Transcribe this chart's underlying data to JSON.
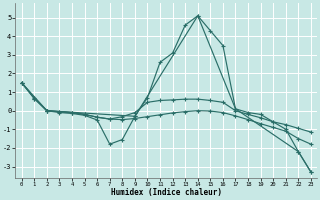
{
  "xlabel": "Humidex (Indice chaleur)",
  "background_color": "#c8e8e5",
  "grid_color": "#ffffff",
  "line_color": "#2a6e68",
  "xlim": [
    -0.5,
    23.5
  ],
  "ylim": [
    -3.6,
    5.8
  ],
  "xticks": [
    0,
    1,
    2,
    3,
    4,
    5,
    6,
    7,
    8,
    9,
    10,
    11,
    12,
    13,
    14,
    15,
    16,
    17,
    18,
    19,
    20,
    21,
    22,
    23
  ],
  "yticks": [
    -3,
    -2,
    -1,
    0,
    1,
    2,
    3,
    4,
    5
  ],
  "series": [
    {
      "x": [
        0,
        1,
        2,
        3,
        4,
        5,
        6,
        7,
        8,
        9,
        10,
        11,
        12,
        13,
        14,
        15,
        16,
        17,
        18,
        19,
        20,
        21,
        22,
        23
      ],
      "y": [
        1.5,
        0.7,
        0.0,
        -0.1,
        -0.15,
        -0.25,
        -0.5,
        -1.8,
        -1.55,
        -0.3,
        0.7,
        2.6,
        3.1,
        4.6,
        5.1,
        4.3,
        3.5,
        0.1,
        -0.1,
        -0.2,
        -0.6,
        -1.0,
        -2.2,
        -3.3
      ]
    },
    {
      "x": [
        0,
        1,
        2,
        3,
        4,
        5,
        6,
        7,
        8,
        9,
        10,
        11,
        12,
        13,
        14,
        15,
        16,
        17,
        18,
        19,
        20,
        21,
        22,
        23
      ],
      "y": [
        1.5,
        0.65,
        0.0,
        -0.05,
        -0.1,
        -0.2,
        -0.35,
        -0.45,
        -0.32,
        -0.1,
        0.45,
        0.55,
        0.58,
        0.62,
        0.62,
        0.55,
        0.45,
        0.0,
        -0.2,
        -0.38,
        -0.6,
        -0.75,
        -0.95,
        -1.15
      ]
    },
    {
      "x": [
        0,
        1,
        2,
        3,
        4,
        5,
        6,
        7,
        8,
        9,
        10,
        11,
        12,
        13,
        14,
        15,
        16,
        17,
        18,
        19,
        20,
        21,
        22,
        23
      ],
      "y": [
        1.5,
        0.65,
        0.0,
        -0.05,
        -0.1,
        -0.2,
        -0.35,
        -0.45,
        -0.48,
        -0.42,
        -0.32,
        -0.22,
        -0.12,
        -0.05,
        0.0,
        -0.02,
        -0.1,
        -0.28,
        -0.48,
        -0.7,
        -0.9,
        -1.1,
        -1.5,
        -1.8
      ]
    },
    {
      "x": [
        0,
        2,
        9,
        14,
        17,
        22,
        23
      ],
      "y": [
        1.5,
        0.0,
        -0.3,
        5.1,
        0.1,
        -2.2,
        -3.3
      ]
    }
  ]
}
